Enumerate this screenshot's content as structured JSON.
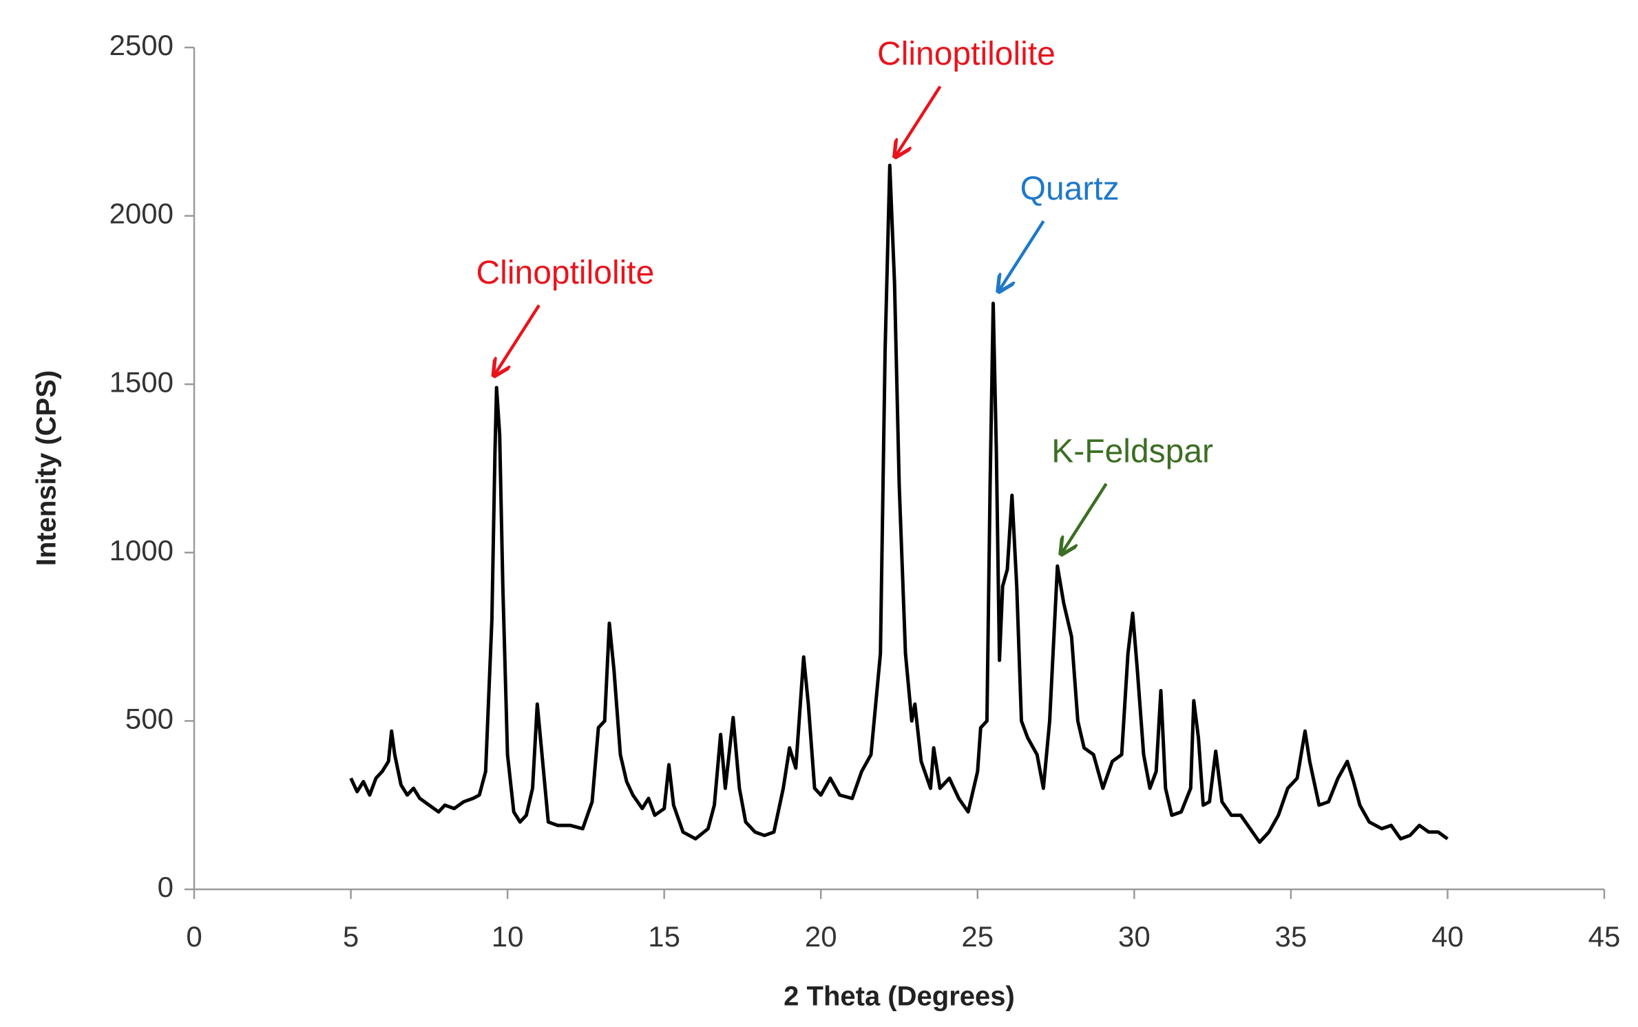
{
  "chart_data": {
    "type": "line",
    "xlabel": "2 Theta (Degrees)",
    "ylabel": "Intensity (CPS)",
    "xlim": [
      0,
      45
    ],
    "xticks": [
      0,
      5,
      10,
      15,
      20,
      25,
      30,
      35,
      40,
      45
    ],
    "ylim": [
      0,
      2500
    ],
    "yticks": [
      0,
      500,
      1000,
      1500,
      2000,
      2500
    ],
    "grid": false,
    "x": [
      5.0,
      5.2,
      5.4,
      5.6,
      5.8,
      6.0,
      6.2,
      6.3,
      6.4,
      6.6,
      6.8,
      7.0,
      7.2,
      7.5,
      7.8,
      8.0,
      8.3,
      8.6,
      8.9,
      9.1,
      9.3,
      9.5,
      9.6,
      9.65,
      9.75,
      9.85,
      10.0,
      10.2,
      10.4,
      10.6,
      10.8,
      10.95,
      11.1,
      11.3,
      11.6,
      12.0,
      12.4,
      12.7,
      12.9,
      13.1,
      13.25,
      13.4,
      13.6,
      13.8,
      14.0,
      14.3,
      14.5,
      14.7,
      15.0,
      15.15,
      15.3,
      15.6,
      16.0,
      16.4,
      16.6,
      16.8,
      16.95,
      17.2,
      17.4,
      17.6,
      17.9,
      18.2,
      18.5,
      18.8,
      19.0,
      19.2,
      19.45,
      19.6,
      19.8,
      20.0,
      20.3,
      20.6,
      21.0,
      21.3,
      21.6,
      21.9,
      22.05,
      22.2,
      22.35,
      22.5,
      22.7,
      22.9,
      23.0,
      23.2,
      23.5,
      23.6,
      23.8,
      24.1,
      24.4,
      24.7,
      25.0,
      25.1,
      25.3,
      25.4,
      25.5,
      25.6,
      25.7,
      25.8,
      25.95,
      26.1,
      26.25,
      26.4,
      26.6,
      26.9,
      27.1,
      27.3,
      27.55,
      27.75,
      28.0,
      28.2,
      28.4,
      28.7,
      29.0,
      29.3,
      29.6,
      29.8,
      29.95,
      30.1,
      30.3,
      30.5,
      30.7,
      30.85,
      31.0,
      31.2,
      31.5,
      31.8,
      31.9,
      32.05,
      32.2,
      32.4,
      32.6,
      32.8,
      33.1,
      33.4,
      33.7,
      34.0,
      34.3,
      34.6,
      34.9,
      35.2,
      35.45,
      35.6,
      35.9,
      36.2,
      36.5,
      36.8,
      37.0,
      37.2,
      37.5,
      37.9,
      38.2,
      38.5,
      38.8,
      39.1,
      39.4,
      39.7,
      40.0
    ],
    "series": [
      {
        "color": "#000000",
        "values": [
          330,
          290,
          320,
          280,
          330,
          350,
          380,
          470,
          400,
          310,
          280,
          300,
          270,
          250,
          230,
          250,
          240,
          260,
          270,
          280,
          350,
          800,
          1300,
          1490,
          1350,
          900,
          400,
          230,
          200,
          220,
          300,
          550,
          400,
          200,
          190,
          190,
          180,
          260,
          480,
          500,
          790,
          650,
          400,
          320,
          280,
          240,
          270,
          220,
          240,
          370,
          250,
          170,
          150,
          180,
          250,
          460,
          300,
          510,
          300,
          200,
          170,
          160,
          170,
          300,
          420,
          360,
          690,
          550,
          300,
          280,
          330,
          280,
          270,
          350,
          400,
          700,
          1600,
          2150,
          1800,
          1200,
          700,
          500,
          550,
          380,
          300,
          420,
          300,
          330,
          270,
          230,
          350,
          480,
          500,
          1200,
          1740,
          1300,
          680,
          900,
          950,
          1170,
          900,
          500,
          450,
          400,
          300,
          500,
          960,
          850,
          750,
          500,
          420,
          400,
          300,
          380,
          400,
          700,
          820,
          650,
          400,
          300,
          350,
          590,
          300,
          220,
          230,
          300,
          560,
          450,
          250,
          260,
          410,
          260,
          220,
          220,
          180,
          140,
          170,
          220,
          300,
          330,
          470,
          380,
          250,
          260,
          330,
          380,
          320,
          250,
          200,
          180,
          190,
          150,
          160,
          190,
          170,
          170,
          150
        ]
      }
    ],
    "annotations": [
      {
        "text": "Clinoptilolite",
        "color": "#e8141c",
        "x": 9.6,
        "y": 1530
      },
      {
        "text": "Clinoptilolite",
        "color": "#e8141c",
        "x": 22.4,
        "y": 2180
      },
      {
        "text": "Quartz",
        "color": "#1f78c8",
        "x": 25.7,
        "y": 1780
      },
      {
        "text": "K-Feldspar",
        "color": "#3b6e22",
        "x": 27.7,
        "y": 1000
      }
    ]
  }
}
